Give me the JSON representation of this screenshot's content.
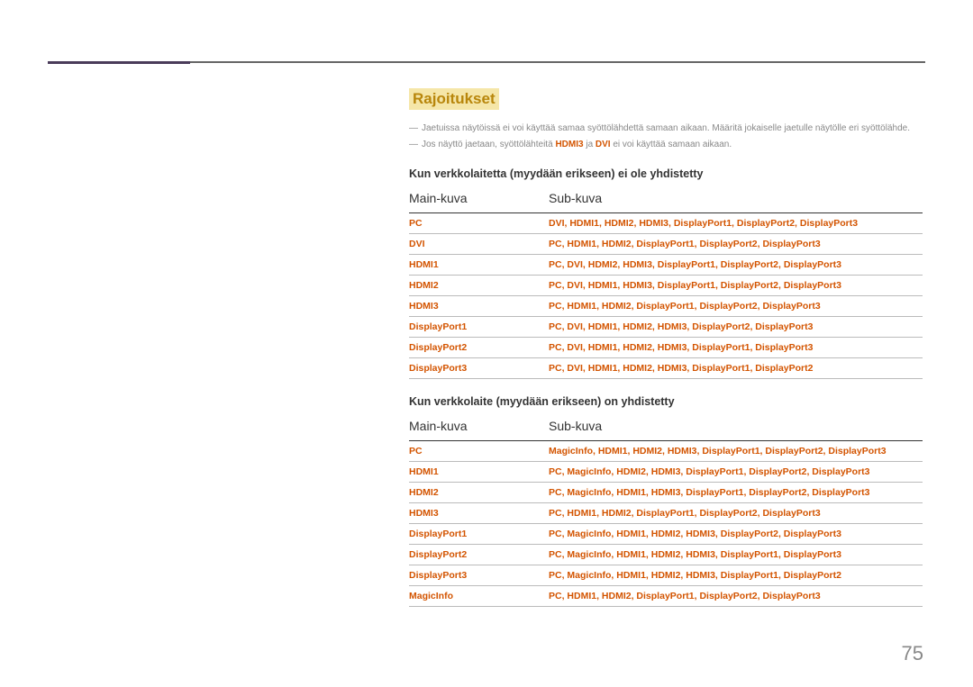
{
  "colors": {
    "title_text": "#b8860b",
    "title_bg": "#f5e6a8",
    "red_text": "#d35400",
    "grey_text": "#888888",
    "body_text": "#333333",
    "rule": "#bbbbbb",
    "header_rule": "#333333",
    "accent_bar": "#4a3c5a"
  },
  "section_title": "Rajoitukset",
  "notes": {
    "note1": "Jaetuissa näytöissä ei voi käyttää samaa syöttölähdettä samaan aikaan. Määritä jokaiselle jaetulle näytölle eri syöttölähde.",
    "note2_pre": "Jos näyttö jaetaan, syöttölähteitä ",
    "note2_r1": "HDMI3",
    "note2_mid": " ja ",
    "note2_r2": "DVI",
    "note2_post": " ei voi käyttää samaan aikaan."
  },
  "table1_heading": "Kun verkkolaitetta (myydään erikseen) ei ole yhdistetty",
  "table2_heading": "Kun verkkolaite (myydään erikseen) on yhdistetty",
  "col_main": "Main-kuva",
  "col_sub": "Sub-kuva",
  "table1": {
    "rows": [
      {
        "main": "PC",
        "sub": "DVI, HDMI1, HDMI2, HDMI3, DisplayPort1, DisplayPort2, DisplayPort3"
      },
      {
        "main": "DVI",
        "sub": "PC, HDMI1, HDMI2, DisplayPort1, DisplayPort2, DisplayPort3"
      },
      {
        "main": "HDMI1",
        "sub": "PC, DVI, HDMI2, HDMI3, DisplayPort1, DisplayPort2, DisplayPort3"
      },
      {
        "main": "HDMI2",
        "sub": "PC, DVI, HDMI1, HDMI3, DisplayPort1, DisplayPort2, DisplayPort3"
      },
      {
        "main": "HDMI3",
        "sub": "PC, HDMI1, HDMI2, DisplayPort1, DisplayPort2, DisplayPort3"
      },
      {
        "main": "DisplayPort1",
        "sub": "PC, DVI, HDMI1, HDMI2, HDMI3, DisplayPort2, DisplayPort3"
      },
      {
        "main": "DisplayPort2",
        "sub": "PC, DVI, HDMI1, HDMI2, HDMI3, DisplayPort1, DisplayPort3"
      },
      {
        "main": "DisplayPort3",
        "sub": "PC, DVI, HDMI1, HDMI2, HDMI3, DisplayPort1, DisplayPort2"
      }
    ]
  },
  "table2": {
    "rows": [
      {
        "main": "PC",
        "sub": "MagicInfo, HDMI1, HDMI2, HDMI3, DisplayPort1, DisplayPort2, DisplayPort3"
      },
      {
        "main": "HDMI1",
        "sub": "PC, MagicInfo, HDMI2, HDMI3, DisplayPort1, DisplayPort2, DisplayPort3"
      },
      {
        "main": "HDMI2",
        "sub": "PC, MagicInfo, HDMI1, HDMI3, DisplayPort1, DisplayPort2, DisplayPort3"
      },
      {
        "main": "HDMI3",
        "sub": "PC, HDMI1, HDMI2, DisplayPort1, DisplayPort2, DisplayPort3"
      },
      {
        "main": "DisplayPort1",
        "sub": "PC, MagicInfo, HDMI1, HDMI2, HDMI3, DisplayPort2, DisplayPort3"
      },
      {
        "main": "DisplayPort2",
        "sub": "PC, MagicInfo, HDMI1, HDMI2, HDMI3, DisplayPort1, DisplayPort3"
      },
      {
        "main": "DisplayPort3",
        "sub": "PC, MagicInfo, HDMI1, HDMI2, HDMI3, DisplayPort1, DisplayPort2"
      },
      {
        "main": "MagicInfo",
        "sub": "PC, HDMI1, HDMI2, DisplayPort1, DisplayPort2, DisplayPort3"
      }
    ]
  },
  "page_number": "75"
}
